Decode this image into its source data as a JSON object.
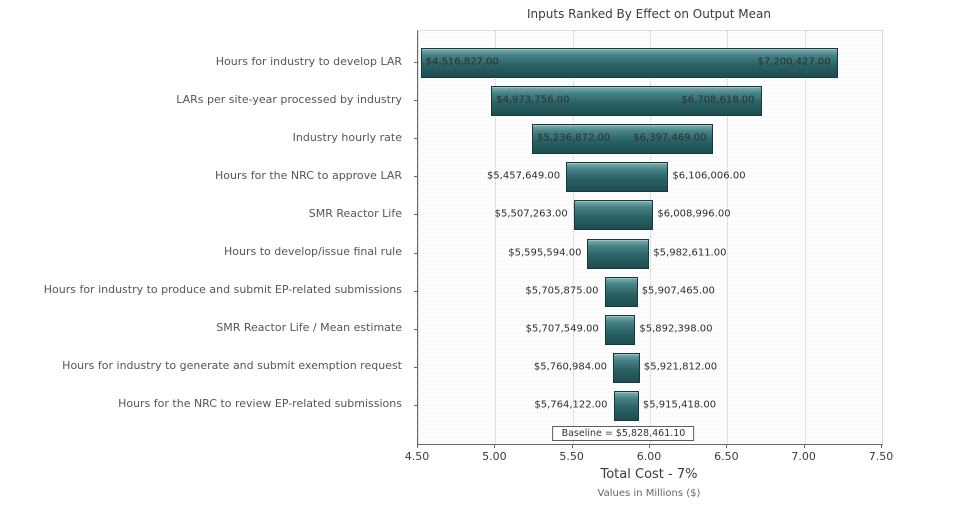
{
  "chart_data": {
    "type": "bar",
    "subtype": "tornado",
    "title": "Inputs Ranked By Effect on Output Mean",
    "xlabel": "Total Cost - 7%",
    "xsublabel": "Values in Millions ($)",
    "xlim": [
      4.5,
      7.5
    ],
    "xticks": [
      4.5,
      5.0,
      5.5,
      6.0,
      6.5,
      7.0,
      7.5
    ],
    "xtick_labels": [
      "4.50",
      "5.00",
      "5.50",
      "6.00",
      "6.50",
      "7.00",
      "7.50"
    ],
    "grid": "vertical-dotted",
    "legend": "none",
    "units": "millions USD",
    "baseline": 5.8284611,
    "baseline_label": "Baseline = $5,828,461.10",
    "bar_fill_color": "#2b6366",
    "bar_border_color": "#153a3c",
    "bars": [
      {
        "category": "Hours for industry to develop LAR",
        "low": 4.516827,
        "high": 7.200427,
        "low_label": "$4,516,827.00",
        "high_label": "$7,200,427.00"
      },
      {
        "category": "LARs per site-year processed by industry",
        "low": 4.973756,
        "high": 6.708618,
        "low_label": "$4,973,756.00",
        "high_label": "$6,708,618.00"
      },
      {
        "category": "Industry hourly rate",
        "low": 5.236872,
        "high": 6.397469,
        "low_label": "$5,236,872.00",
        "high_label": "$6,397,469.00"
      },
      {
        "category": "Hours for the NRC to approve LAR",
        "low": 5.457649,
        "high": 6.106006,
        "low_label": "$5,457,649.00",
        "high_label": "$6,106,006.00"
      },
      {
        "category": "SMR Reactor Life",
        "low": 5.507263,
        "high": 6.008996,
        "low_label": "$5,507,263.00",
        "high_label": "$6,008,996.00"
      },
      {
        "category": "Hours to develop/issue final rule",
        "low": 5.595594,
        "high": 5.982611,
        "low_label": "$5,595,594.00",
        "high_label": "$5,982,611.00"
      },
      {
        "category": "Hours for industry to produce and submit EP-related submissions",
        "low": 5.705875,
        "high": 5.907465,
        "low_label": "$5,705,875.00",
        "high_label": "$5,907,465.00"
      },
      {
        "category": "SMR Reactor Life / Mean estimate",
        "low": 5.707549,
        "high": 5.892398,
        "low_label": "$5,707,549.00",
        "high_label": "$5,892,398.00"
      },
      {
        "category": "Hours for industry to generate and submit exemption request",
        "low": 5.760984,
        "high": 5.921812,
        "low_label": "$5,760,984.00",
        "high_label": "$5,921,812.00"
      },
      {
        "category": "Hours for the NRC to review EP-related submissions",
        "low": 5.764122,
        "high": 5.915418,
        "low_label": "$5,764,122.00",
        "high_label": "$5,915,418.00"
      }
    ]
  }
}
